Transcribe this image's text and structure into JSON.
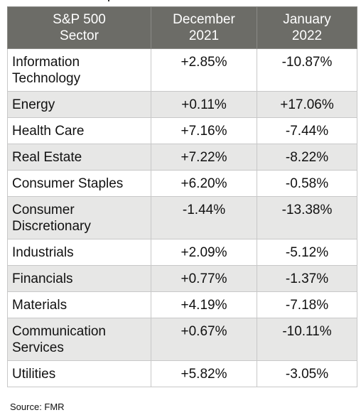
{
  "chart_data": {
    "type": "table",
    "columns": [
      "S&P 500 Sector",
      "December 2021",
      "January 2022"
    ],
    "rows": [
      {
        "sector": "Information Technology",
        "dec_2021": "+2.85%",
        "jan_2022": "-10.87%",
        "dec_value": 2.85,
        "jan_value": -10.87,
        "shaded": false
      },
      {
        "sector": "Energy",
        "dec_2021": "+0.11%",
        "jan_2022": "+17.06%",
        "dec_value": 0.11,
        "jan_value": 17.06,
        "shaded": true
      },
      {
        "sector": "Health Care",
        "dec_2021": "+7.16%",
        "jan_2022": "-7.44%",
        "dec_value": 7.16,
        "jan_value": -7.44,
        "shaded": false
      },
      {
        "sector": "Real Estate",
        "dec_2021": "+7.22%",
        "jan_2022": "-8.22%",
        "dec_value": 7.22,
        "jan_value": -8.22,
        "shaded": true
      },
      {
        "sector": "Consumer Staples",
        "dec_2021": "+6.20%",
        "jan_2022": "-0.58%",
        "dec_value": 6.2,
        "jan_value": -0.58,
        "shaded": false
      },
      {
        "sector": "Consumer Discretionary",
        "dec_2021": "-1.44%",
        "jan_2022": "-13.38%",
        "dec_value": -1.44,
        "jan_value": -13.38,
        "shaded": true
      },
      {
        "sector": "Industrials",
        "dec_2021": "+2.09%",
        "jan_2022": "-5.12%",
        "dec_value": 2.09,
        "jan_value": -5.12,
        "shaded": false
      },
      {
        "sector": "Financials",
        "dec_2021": "+0.77%",
        "jan_2022": "-1.37%",
        "dec_value": 0.77,
        "jan_value": -1.37,
        "shaded": true
      },
      {
        "sector": "Materials",
        "dec_2021": "+4.19%",
        "jan_2022": "-7.18%",
        "dec_value": 4.19,
        "jan_value": -7.18,
        "shaded": false
      },
      {
        "sector": "Communication Services",
        "dec_2021": "+0.67%",
        "jan_2022": "-10.11%",
        "dec_value": 0.67,
        "jan_value": -10.11,
        "shaded": true
      },
      {
        "sector": "Utilities",
        "dec_2021": "+5.82%",
        "jan_2022": "-3.05%",
        "dec_value": 5.82,
        "jan_value": -3.05,
        "shaded": false
      }
    ],
    "source": "Source: FMR"
  },
  "header": {
    "col1": [
      "S&P 500",
      "Sector"
    ],
    "col2": [
      "December",
      "2021"
    ],
    "col3": [
      "January",
      "2022"
    ]
  },
  "colors": {
    "header_bg": "#6c6c67",
    "row_shade": "#e7e7e6",
    "positive": "#2f8b3e",
    "negative": "#c0102a"
  }
}
